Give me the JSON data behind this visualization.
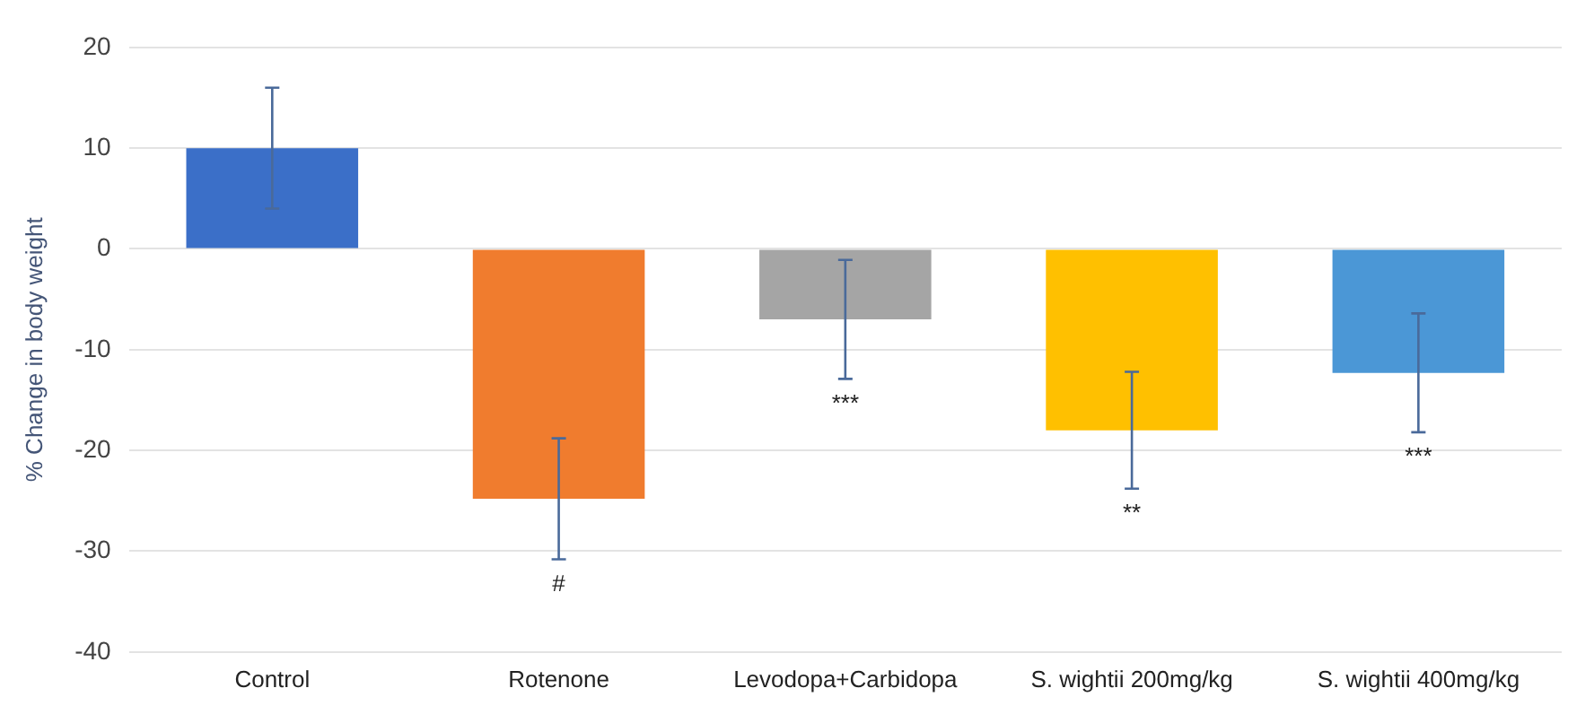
{
  "chart_data": {
    "type": "bar",
    "ylabel": "% Change in body weight",
    "categories": [
      "Control",
      "Rotenone",
      "Levodopa+Carbidopa",
      "S. wightii 200mg/kg",
      "S. wightii 400mg/kg"
    ],
    "values": [
      10,
      -24.8,
      -7,
      -18,
      -12.3
    ],
    "errors": [
      6,
      6,
      5.9,
      5.8,
      5.9
    ],
    "colors": [
      "#3b6fc8",
      "#f07c2e",
      "#a5a5a5",
      "#ffc000",
      "#4b97d6"
    ],
    "ylim": [
      -40,
      20
    ],
    "yticks": [
      -40,
      -30,
      -20,
      -10,
      0,
      10,
      20
    ],
    "grid": "y",
    "annotations": [
      "#",
      "***",
      "**",
      "***"
    ]
  }
}
